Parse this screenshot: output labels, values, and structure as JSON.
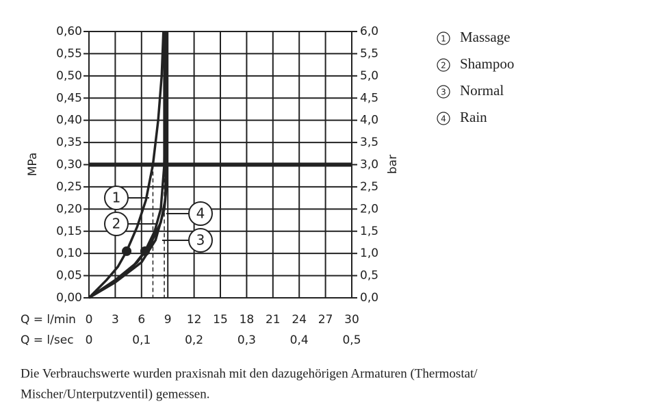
{
  "chart_data": {
    "type": "line",
    "ylabel": "MPa",
    "y2label": "bar",
    "xlabel": "Q = l/min",
    "x2label": "Q = l/sec",
    "xlim": [
      0,
      30
    ],
    "xticks": [
      0,
      3,
      6,
      9,
      12,
      15,
      18,
      21,
      24,
      27,
      30
    ],
    "x2lim": [
      0,
      0.5
    ],
    "x2ticks": [
      0,
      {
        "value": 0.1,
        "label": "0,1"
      },
      {
        "value": 0.2,
        "label": "0,2"
      },
      {
        "value": 0.3,
        "label": "0,3"
      },
      {
        "value": 0.4,
        "label": "0,4"
      },
      {
        "value": 0.5,
        "label": "0,5"
      }
    ],
    "ylim": [
      0,
      0.6
    ],
    "yticks": [
      {
        "value": 0,
        "label": "0,00"
      },
      {
        "value": 0.05,
        "label": "0,05"
      },
      {
        "value": 0.1,
        "label": "0,10"
      },
      {
        "value": 0.15,
        "label": "0,15"
      },
      {
        "value": 0.2,
        "label": "0,20"
      },
      {
        "value": 0.25,
        "label": "0,25"
      },
      {
        "value": 0.3,
        "label": "0,30"
      },
      {
        "value": 0.35,
        "label": "0,35"
      },
      {
        "value": 0.4,
        "label": "0,40"
      },
      {
        "value": 0.45,
        "label": "0,45"
      },
      {
        "value": 0.5,
        "label": "0,50"
      },
      {
        "value": 0.55,
        "label": "0,55"
      },
      {
        "value": 0.6,
        "label": "0,60"
      }
    ],
    "y2lim": [
      0,
      6
    ],
    "y2ticks": [
      {
        "value": 0,
        "label": "0,0"
      },
      {
        "value": 0.5,
        "label": "0,5"
      },
      {
        "value": 1,
        "label": "1,0"
      },
      {
        "value": 1.5,
        "label": "1,5"
      },
      {
        "value": 2,
        "label": "2,0"
      },
      {
        "value": 2.5,
        "label": "2,5"
      },
      {
        "value": 3,
        "label": "3,0"
      },
      {
        "value": 3.5,
        "label": "3,5"
      },
      {
        "value": 4,
        "label": "4,0"
      },
      {
        "value": 4.5,
        "label": "4,5"
      },
      {
        "value": 5,
        "label": "5,0"
      },
      {
        "value": 5.5,
        "label": "5,5"
      },
      {
        "value": 6,
        "label": "6,0"
      }
    ],
    "grid": true,
    "reference_y": 0.3,
    "reference_x": [
      7.3,
      8.6
    ],
    "highlight": [
      {
        "x": 4.3,
        "y": 0.105
      },
      {
        "x": 6.4,
        "y": 0.105
      }
    ],
    "series": [
      {
        "name": "Massage",
        "label": "1",
        "color": "#222222",
        "x": [
          0,
          2,
          3.3,
          4.3,
          5.5,
          6.5,
          7.3,
          7.9,
          8.3,
          8.5
        ],
        "values": [
          0,
          0.04,
          0.07,
          0.105,
          0.16,
          0.22,
          0.3,
          0.4,
          0.5,
          0.6
        ]
      },
      {
        "name": "Shampoo",
        "label": "2",
        "color": "#222222",
        "x": [
          0,
          3,
          5,
          6.4,
          7.5,
          8.2,
          8.6,
          8.7,
          8.7
        ],
        "values": [
          0,
          0.04,
          0.07,
          0.105,
          0.15,
          0.2,
          0.3,
          0.45,
          0.6
        ]
      },
      {
        "name": "Normal",
        "label": "3",
        "color": "#222222",
        "x": [
          0,
          3,
          5.5,
          7,
          8.2,
          8.7,
          8.8,
          8.8
        ],
        "values": [
          0,
          0.04,
          0.08,
          0.12,
          0.17,
          0.22,
          0.3,
          0.6
        ]
      },
      {
        "name": "Rain",
        "label": "4",
        "color": "#222222",
        "x": [
          0,
          3,
          6,
          7.6,
          8.6,
          8.9,
          8.9,
          8.9
        ],
        "values": [
          0,
          0.035,
          0.08,
          0.13,
          0.2,
          0.26,
          0.3,
          0.6
        ]
      }
    ],
    "note": [
      "Die Verbrauchswerte wurden praxisnah mit den dazugehörigen Armaturen (Thermostat/",
      "Mischer/Unterputzventil) gemessen."
    ]
  }
}
